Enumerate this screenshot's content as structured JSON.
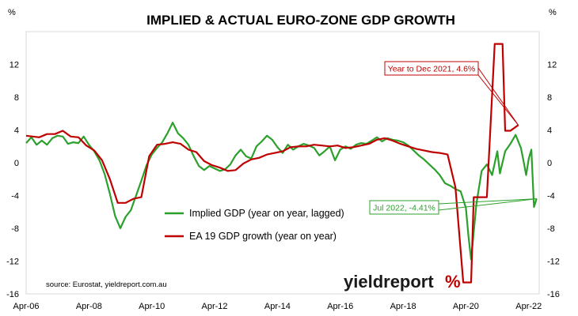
{
  "chart_data": {
    "type": "line",
    "title": "IMPLIED & ACTUAL EURO-ZONE GDP GROWTH",
    "y_unit_left": "%",
    "y_unit_right": "%",
    "ylim": [
      -16,
      16
    ],
    "yticks": [
      -16,
      -12,
      -8,
      -4,
      0,
      4,
      8,
      12
    ],
    "ytick_labels": [
      "-16",
      "-12",
      "-8",
      "-4",
      "0",
      "4",
      "8",
      "12"
    ],
    "xlim": [
      "2006-04",
      "2022-08"
    ],
    "xticks": [
      "Apr-06",
      "Apr-08",
      "Apr-10",
      "Apr-12",
      "Apr-14",
      "Apr-16",
      "Apr-18",
      "Apr-20",
      "Apr-22"
    ],
    "grid": false,
    "legend_position": "center-left",
    "source": "source: Eurostat, yieldreport.com.au",
    "logo_text": "yieldreport",
    "logo_mark": "%",
    "series": [
      {
        "name": "Implied GDP (year on year, lagged)",
        "color": "#2ca02c",
        "points": [
          [
            "2006-04",
            2.4
          ],
          [
            "2006-06",
            3.1
          ],
          [
            "2006-08",
            2.2
          ],
          [
            "2006-10",
            2.7
          ],
          [
            "2006-12",
            2.2
          ],
          [
            "2007-02",
            3.0
          ],
          [
            "2007-04",
            3.3
          ],
          [
            "2007-06",
            3.2
          ],
          [
            "2007-08",
            2.3
          ],
          [
            "2007-10",
            2.5
          ],
          [
            "2007-12",
            2.4
          ],
          [
            "2008-02",
            3.2
          ],
          [
            "2008-04",
            2.2
          ],
          [
            "2008-06",
            1.4
          ],
          [
            "2008-08",
            0.3
          ],
          [
            "2008-10",
            -1.4
          ],
          [
            "2008-12",
            -3.8
          ],
          [
            "2009-02",
            -6.5
          ],
          [
            "2009-04",
            -8.0
          ],
          [
            "2009-06",
            -6.6
          ],
          [
            "2009-08",
            -5.8
          ],
          [
            "2009-10",
            -4.0
          ],
          [
            "2009-12",
            -2.2
          ],
          [
            "2010-02",
            -0.3
          ],
          [
            "2010-04",
            1.0
          ],
          [
            "2010-06",
            1.8
          ],
          [
            "2010-08",
            2.5
          ],
          [
            "2010-10",
            3.6
          ],
          [
            "2010-12",
            4.9
          ],
          [
            "2011-02",
            3.6
          ],
          [
            "2011-04",
            3.0
          ],
          [
            "2011-06",
            2.2
          ],
          [
            "2011-08",
            0.8
          ],
          [
            "2011-10",
            -0.4
          ],
          [
            "2011-12",
            -0.9
          ],
          [
            "2012-02",
            -0.4
          ],
          [
            "2012-04",
            -0.7
          ],
          [
            "2012-06",
            -1.0
          ],
          [
            "2012-08",
            -0.8
          ],
          [
            "2012-10",
            -0.2
          ],
          [
            "2012-12",
            0.9
          ],
          [
            "2013-02",
            1.6
          ],
          [
            "2013-04",
            0.8
          ],
          [
            "2013-06",
            0.5
          ],
          [
            "2013-08",
            2.0
          ],
          [
            "2013-10",
            2.6
          ],
          [
            "2013-12",
            3.3
          ],
          [
            "2014-02",
            2.8
          ],
          [
            "2014-04",
            1.9
          ],
          [
            "2014-06",
            1.2
          ],
          [
            "2014-08",
            2.2
          ],
          [
            "2014-10",
            1.6
          ],
          [
            "2014-12",
            2.0
          ],
          [
            "2015-02",
            2.3
          ],
          [
            "2015-04",
            2.1
          ],
          [
            "2015-06",
            1.8
          ],
          [
            "2015-08",
            0.9
          ],
          [
            "2015-10",
            1.4
          ],
          [
            "2015-12",
            2.0
          ],
          [
            "2016-02",
            0.3
          ],
          [
            "2016-04",
            1.6
          ],
          [
            "2016-06",
            2.0
          ],
          [
            "2016-08",
            1.7
          ],
          [
            "2016-10",
            2.2
          ],
          [
            "2016-12",
            2.4
          ],
          [
            "2017-02",
            2.3
          ],
          [
            "2017-04",
            2.7
          ],
          [
            "2017-06",
            3.1
          ],
          [
            "2017-08",
            2.6
          ],
          [
            "2017-10",
            3.0
          ],
          [
            "2017-12",
            2.8
          ],
          [
            "2018-02",
            2.7
          ],
          [
            "2018-04",
            2.5
          ],
          [
            "2018-06",
            2.1
          ],
          [
            "2018-08",
            1.5
          ],
          [
            "2018-10",
            0.9
          ],
          [
            "2018-12",
            0.4
          ],
          [
            "2019-02",
            -0.2
          ],
          [
            "2019-04",
            -0.8
          ],
          [
            "2019-06",
            -1.5
          ],
          [
            "2019-08",
            -2.5
          ],
          [
            "2019-10",
            -2.8
          ],
          [
            "2019-12",
            -3.2
          ],
          [
            "2020-02",
            -3.5
          ],
          [
            "2020-04",
            -5.5
          ],
          [
            "2020-05",
            -9.0
          ],
          [
            "2020-06",
            -11.8
          ],
          [
            "2020-08",
            -5.0
          ],
          [
            "2020-10",
            -1.0
          ],
          [
            "2020-12",
            -0.2
          ],
          [
            "2021-02",
            -1.5
          ],
          [
            "2021-04",
            1.4
          ],
          [
            "2021-05",
            -1.3
          ],
          [
            "2021-07",
            1.4
          ],
          [
            "2021-09",
            2.3
          ],
          [
            "2021-11",
            3.4
          ],
          [
            "2022-01",
            1.8
          ],
          [
            "2022-02",
            0.2
          ],
          [
            "2022-03",
            -1.5
          ],
          [
            "2022-04",
            0.5
          ],
          [
            "2022-05",
            1.6
          ],
          [
            "2022-06",
            -5.4
          ],
          [
            "2022-07",
            -4.4
          ]
        ]
      },
      {
        "name": "EA 19 GDP growth (year on year)",
        "color": "#c00000",
        "points": [
          [
            "2006-04",
            3.3
          ],
          [
            "2006-09",
            3.1
          ],
          [
            "2006-12",
            3.5
          ],
          [
            "2007-03",
            3.5
          ],
          [
            "2007-06",
            3.9
          ],
          [
            "2007-09",
            3.2
          ],
          [
            "2007-12",
            3.1
          ],
          [
            "2008-03",
            2.1
          ],
          [
            "2008-06",
            1.5
          ],
          [
            "2008-09",
            0.3
          ],
          [
            "2008-12",
            -2.0
          ],
          [
            "2009-03",
            -4.9
          ],
          [
            "2009-06",
            -4.9
          ],
          [
            "2009-09",
            -4.4
          ],
          [
            "2009-12",
            -4.2
          ],
          [
            "2010-03",
            0.8
          ],
          [
            "2010-06",
            2.2
          ],
          [
            "2010-09",
            2.3
          ],
          [
            "2010-12",
            2.5
          ],
          [
            "2011-03",
            2.3
          ],
          [
            "2011-06",
            1.6
          ],
          [
            "2011-09",
            1.3
          ],
          [
            "2011-12",
            0.2
          ],
          [
            "2012-03",
            -0.3
          ],
          [
            "2012-06",
            -0.6
          ],
          [
            "2012-09",
            -1.0
          ],
          [
            "2012-12",
            -0.9
          ],
          [
            "2013-03",
            -0.1
          ],
          [
            "2013-06",
            0.4
          ],
          [
            "2013-09",
            0.6
          ],
          [
            "2013-12",
            1.0
          ],
          [
            "2014-03",
            1.2
          ],
          [
            "2014-06",
            1.4
          ],
          [
            "2014-09",
            1.9
          ],
          [
            "2014-12",
            2.0
          ],
          [
            "2015-03",
            2.0
          ],
          [
            "2015-06",
            2.2
          ],
          [
            "2015-09",
            2.1
          ],
          [
            "2015-12",
            2.0
          ],
          [
            "2016-03",
            2.1
          ],
          [
            "2016-06",
            1.8
          ],
          [
            "2016-09",
            1.9
          ],
          [
            "2016-12",
            2.1
          ],
          [
            "2017-03",
            2.3
          ],
          [
            "2017-06",
            2.8
          ],
          [
            "2017-09",
            3.0
          ],
          [
            "2017-12",
            2.7
          ],
          [
            "2018-03",
            2.3
          ],
          [
            "2018-06",
            2.0
          ],
          [
            "2018-09",
            1.7
          ],
          [
            "2018-12",
            1.5
          ],
          [
            "2019-03",
            1.3
          ],
          [
            "2019-06",
            1.2
          ],
          [
            "2019-09",
            1.0
          ],
          [
            "2019-12",
            -3.0
          ],
          [
            "2020-03",
            -14.6
          ],
          [
            "2020-06",
            -14.6
          ],
          [
            "2020-07",
            -4.2
          ],
          [
            "2020-09",
            -4.2
          ],
          [
            "2020-12",
            -4.2
          ],
          [
            "2021-03",
            14.5
          ],
          [
            "2021-06",
            14.5
          ],
          [
            "2021-07",
            3.9
          ],
          [
            "2021-09",
            3.9
          ],
          [
            "2021-12",
            4.6
          ]
        ]
      }
    ],
    "annotations": [
      {
        "text": "Year to Dec 2021, 4.6%",
        "color": "#c00000",
        "target": [
          "2021-12",
          4.6
        ]
      },
      {
        "text": "Jul 2022, -4.41%",
        "color": "#2ca02c",
        "target": [
          "2022-07",
          -4.4
        ]
      }
    ]
  }
}
